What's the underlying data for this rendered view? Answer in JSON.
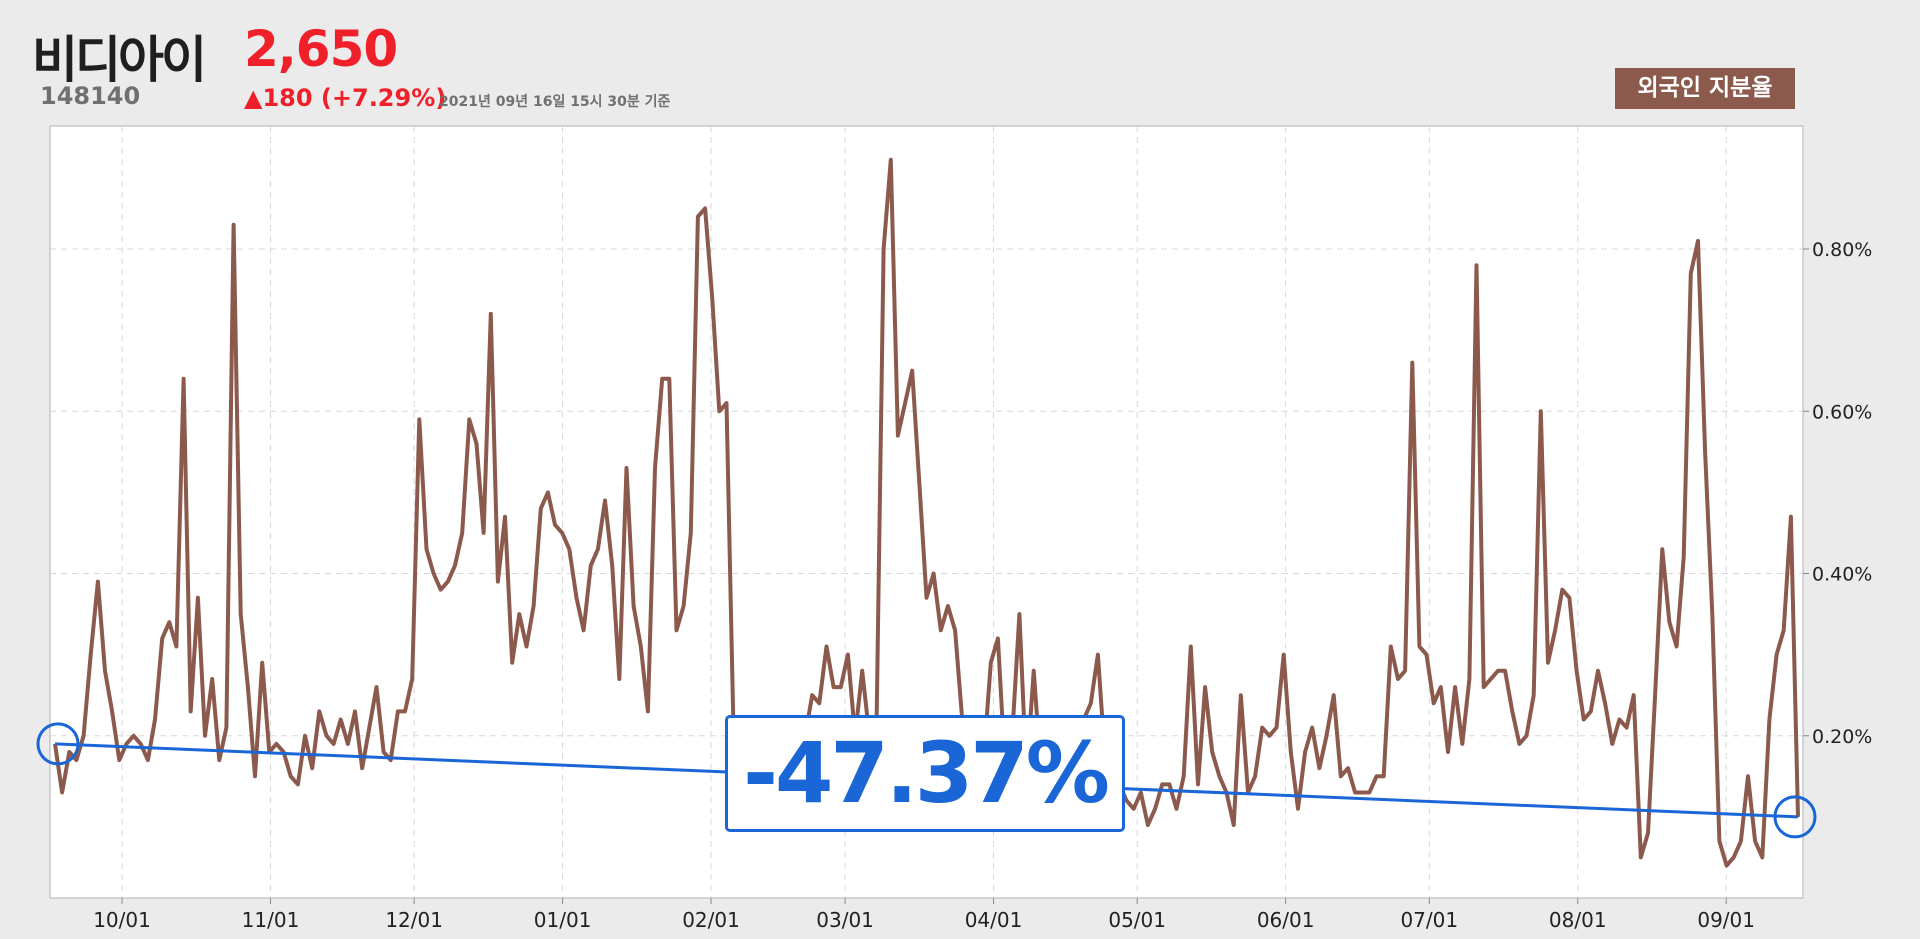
{
  "header": {
    "stock_name": "비디아이",
    "price": "2,650",
    "code": "148140",
    "change": "▲180 (+7.29%)",
    "as_of": "2021년 09년 16일 15시 30분 기준",
    "metric_label": "외국인 지분율"
  },
  "colors": {
    "line": "#8c5a4d",
    "trend": "#1a66d6",
    "up": "#f0202a"
  },
  "trend_badge": "-47.37%",
  "chart_data": {
    "type": "line",
    "title": "",
    "xlabel": "",
    "ylabel": "",
    "x_range": [
      "2020-09-17",
      "2021-09-16"
    ],
    "ylim": [
      0,
      0.95
    ],
    "yticks": [
      0.2,
      0.4,
      0.6,
      0.8
    ],
    "ytick_labels": [
      "0.20%",
      "0.40%",
      "0.60%",
      "0.80%"
    ],
    "xticks": [
      "2020-10-01",
      "2020-11-01",
      "2020-12-01",
      "2021-01-01",
      "2021-02-01",
      "2021-03-01",
      "2021-04-01",
      "2021-05-01",
      "2021-06-01",
      "2021-07-01",
      "2021-08-01",
      "2021-09-01"
    ],
    "xtick_labels": [
      "10/01",
      "11/01",
      "12/01",
      "01/01",
      "02/01",
      "03/01",
      "04/01",
      "05/01",
      "06/01",
      "07/01",
      "08/01",
      "09/01"
    ],
    "grid": true,
    "series": [
      {
        "values": [
          0.19,
          0.13,
          0.18,
          0.17,
          0.2,
          0.3,
          0.39,
          0.28,
          0.23,
          0.17,
          0.19,
          0.2,
          0.19,
          0.17,
          0.22,
          0.32,
          0.34,
          0.31,
          0.64,
          0.23,
          0.37,
          0.2,
          0.27,
          0.17,
          0.21,
          0.83,
          0.35,
          0.26,
          0.15,
          0.29,
          0.18,
          0.19,
          0.18,
          0.15,
          0.14,
          0.2,
          0.16,
          0.23,
          0.2,
          0.19,
          0.22,
          0.19,
          0.23,
          0.16,
          0.21,
          0.26,
          0.18,
          0.17,
          0.23,
          0.23,
          0.27,
          0.59,
          0.43,
          0.4,
          0.38,
          0.39,
          0.41,
          0.45,
          0.59,
          0.56,
          0.45,
          0.72,
          0.39,
          0.47,
          0.29,
          0.35,
          0.31,
          0.36,
          0.48,
          0.5,
          0.46,
          0.45,
          0.43,
          0.37,
          0.33,
          0.41,
          0.43,
          0.49,
          0.41,
          0.27,
          0.53,
          0.36,
          0.31,
          0.23,
          0.53,
          0.64,
          0.64,
          0.33,
          0.36,
          0.45,
          0.84,
          0.85,
          0.74,
          0.6,
          0.61,
          0.2,
          0.18,
          0.17,
          0.18,
          0.16,
          0.17,
          0.18,
          0.19,
          0.2,
          0.21,
          0.2,
          0.25,
          0.24,
          0.31,
          0.26,
          0.26,
          0.3,
          0.2,
          0.28,
          0.2,
          0.21,
          0.8,
          0.91,
          0.57,
          0.61,
          0.65,
          0.51,
          0.37,
          0.4,
          0.33,
          0.36,
          0.33,
          0.22,
          0.18,
          0.19,
          0.17,
          0.29,
          0.32,
          0.16,
          0.2,
          0.35,
          0.15,
          0.28,
          0.16,
          0.17,
          0.19,
          0.2,
          0.19,
          0.2,
          0.22,
          0.24,
          0.3,
          0.17,
          0.15,
          0.14,
          0.12,
          0.11,
          0.13,
          0.09,
          0.11,
          0.14,
          0.14,
          0.11,
          0.15,
          0.31,
          0.14,
          0.26,
          0.18,
          0.15,
          0.13,
          0.09,
          0.25,
          0.13,
          0.15,
          0.21,
          0.2,
          0.21,
          0.3,
          0.18,
          0.11,
          0.18,
          0.21,
          0.16,
          0.2,
          0.25,
          0.15,
          0.16,
          0.13,
          0.13,
          0.13,
          0.15,
          0.15,
          0.31,
          0.27,
          0.28,
          0.66,
          0.31,
          0.3,
          0.24,
          0.26,
          0.18,
          0.26,
          0.19,
          0.27,
          0.78,
          0.26,
          0.27,
          0.28,
          0.28,
          0.23,
          0.19,
          0.2,
          0.25,
          0.6,
          0.29,
          0.33,
          0.38,
          0.37,
          0.28,
          0.22,
          0.23,
          0.28,
          0.24,
          0.19,
          0.22,
          0.21,
          0.25,
          0.05,
          0.08,
          0.25,
          0.43,
          0.34,
          0.31,
          0.42,
          0.77,
          0.81,
          0.55,
          0.35,
          0.07,
          0.04,
          0.05,
          0.07,
          0.15,
          0.07,
          0.05,
          0.22,
          0.3,
          0.33,
          0.47,
          0.1
        ]
      }
    ],
    "trend_line": {
      "start": 0.19,
      "end": 0.1,
      "change_pct": "-47.37%"
    }
  }
}
